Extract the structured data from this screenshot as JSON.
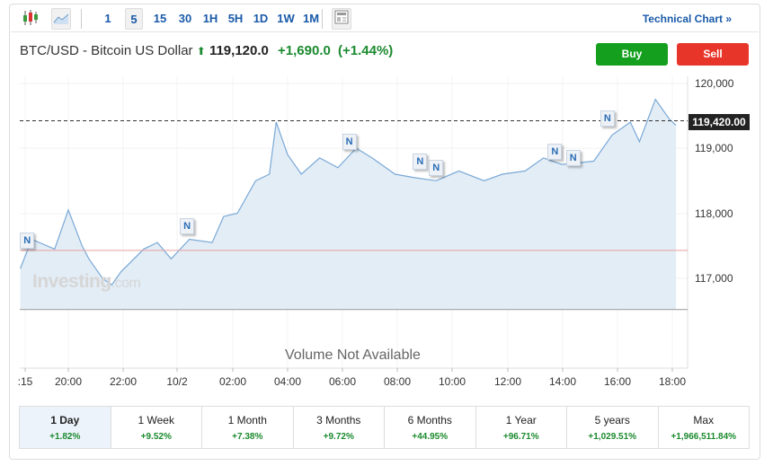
{
  "toolbar": {
    "intervals": [
      "1",
      "5",
      "15",
      "30",
      "1H",
      "5H",
      "1D",
      "1W",
      "1M"
    ],
    "selected_interval": "5",
    "technical_chart": "Technical Chart »",
    "icons": [
      "candlestick-chart-icon",
      "area-chart-icon",
      "news-layout-icon"
    ]
  },
  "header": {
    "instrument": "BTC/USD - Bitcoin US Dollar",
    "price": "119,120.0",
    "change": "+1,690.0",
    "change_pct": "(+1.44%)",
    "direction_icon": "arrow-up-icon",
    "up_color": "#1b8a2e"
  },
  "actions": {
    "buy": "Buy",
    "sell": "Sell",
    "buy_color": "#14a01e",
    "sell_color": "#e8352a"
  },
  "chart": {
    "current_price_label": "119,420.00",
    "volume_text": "Volume Not Available",
    "watermark": "Investing",
    "watermark_suffix": ".com",
    "y_ticks": [
      "120,000",
      "119,000",
      "118,000",
      "117,000"
    ],
    "x_ticks": [
      ":15",
      "20:00",
      "22:00",
      "10/2",
      "02:00",
      "04:00",
      "06:00",
      "08:00",
      "10:00",
      "12:00",
      "14:00",
      "16:00",
      "18:00"
    ],
    "news_marker": "N"
  },
  "chart_data": {
    "type": "area",
    "ylim": [
      116520,
      120150
    ],
    "current_price": 119420,
    "previous_close": 117430,
    "points": [
      [
        "10/1 18:15",
        117150
      ],
      [
        "10/1 18:40",
        117600
      ],
      [
        "10/1 19:30",
        117450
      ],
      [
        "10/1 20:00",
        118050
      ],
      [
        "10/1 20:30",
        117500
      ],
      [
        "10/1 20:45",
        117300
      ],
      [
        "10/1 21:15",
        117000
      ],
      [
        "10/1 21:35",
        116900
      ],
      [
        "10/1 21:55",
        117100
      ],
      [
        "10/1 22:45",
        117450
      ],
      [
        "10/1 23:15",
        117550
      ],
      [
        "10/1 23:45",
        117300
      ],
      [
        "10/2 00:25",
        117600
      ],
      [
        "10/2 01:15",
        117550
      ],
      [
        "10/2 01:40",
        117950
      ],
      [
        "10/2 02:10",
        118000
      ],
      [
        "10/2 02:50",
        118500
      ],
      [
        "10/2 03:20",
        118600
      ],
      [
        "10/2 03:35",
        119400
      ],
      [
        "10/2 04:00",
        118900
      ],
      [
        "10/2 04:30",
        118600
      ],
      [
        "10/2 05:10",
        118850
      ],
      [
        "10/2 05:50",
        118700
      ],
      [
        "10/2 06:30",
        119000
      ],
      [
        "10/2 07:05",
        118850
      ],
      [
        "10/2 07:55",
        118600
      ],
      [
        "10/2 08:35",
        118550
      ],
      [
        "10/2 09:25",
        118500
      ],
      [
        "10/2 10:15",
        118650
      ],
      [
        "10/2 11:10",
        118500
      ],
      [
        "10/2 11:50",
        118600
      ],
      [
        "10/2 12:40",
        118650
      ],
      [
        "10/2 13:20",
        118850
      ],
      [
        "10/2 14:00",
        118750
      ],
      [
        "10/2 15:10",
        118800
      ],
      [
        "10/2 15:50",
        119200
      ],
      [
        "10/2 16:30",
        119400
      ],
      [
        "10/2 16:50",
        119100
      ],
      [
        "10/2 17:25",
        119750
      ],
      [
        "10/2 17:55",
        119450
      ],
      [
        "10/2 18:10",
        119350
      ]
    ],
    "news_times": [
      [
        "10/1 18:30",
        117580
      ],
      [
        "10/2 00:20",
        117800
      ],
      [
        "10/2 06:15",
        119100
      ],
      [
        "10/2 08:50",
        118800
      ],
      [
        "10/2 09:25",
        118700
      ],
      [
        "10/2 13:45",
        118950
      ],
      [
        "10/2 14:25",
        118850
      ],
      [
        "10/2 15:40",
        119450
      ]
    ]
  },
  "periods": [
    {
      "label": "1 Day",
      "value": "+1.82%"
    },
    {
      "label": "1 Week",
      "value": "+9.52%"
    },
    {
      "label": "1 Month",
      "value": "+7.38%"
    },
    {
      "label": "3 Months",
      "value": "+9.72%"
    },
    {
      "label": "6 Months",
      "value": "+44.95%"
    },
    {
      "label": "1 Year",
      "value": "+96.71%"
    },
    {
      "label": "5 years",
      "value": "+1,029.51%"
    },
    {
      "label": "Max",
      "value": "+1,966,511.84%"
    }
  ]
}
